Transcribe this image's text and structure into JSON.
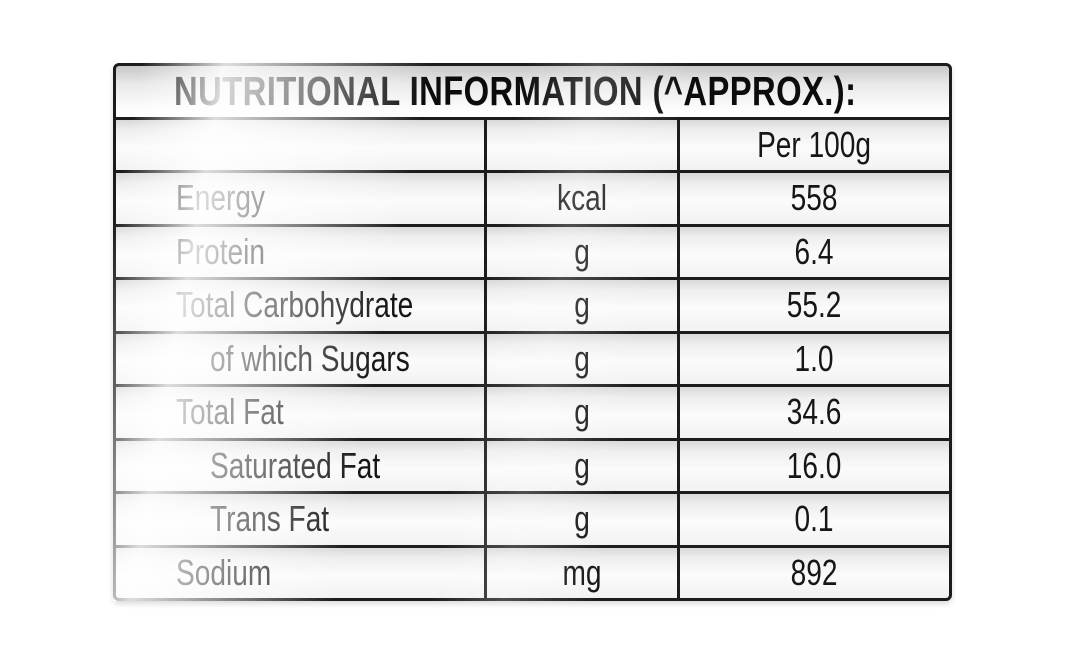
{
  "table": {
    "title": "NUTRITIONAL INFORMATION (^APPROX.):",
    "columns": {
      "amount_header": "Per 100g"
    },
    "rows": [
      {
        "nutrient": "Energy",
        "unit": "kcal",
        "value": "558",
        "indent": false
      },
      {
        "nutrient": "Protein",
        "unit": "g",
        "value": "6.4",
        "indent": false
      },
      {
        "nutrient": "Total Carbohydrate",
        "unit": "g",
        "value": "55.2",
        "indent": false
      },
      {
        "nutrient": "of which Sugars",
        "unit": "g",
        "value": "1.0",
        "indent": true
      },
      {
        "nutrient": "Total Fat",
        "unit": "g",
        "value": "34.6",
        "indent": false
      },
      {
        "nutrient": "Saturated Fat",
        "unit": "g",
        "value": "16.0",
        "indent": true
      },
      {
        "nutrient": "Trans Fat",
        "unit": "g",
        "value": "0.1",
        "indent": true
      },
      {
        "nutrient": "Sodium",
        "unit": "mg",
        "value": "892",
        "indent": false
      }
    ]
  },
  "colors": {
    "grid_line": "#1c1c1c",
    "text": "#161616",
    "background": "#ffffff",
    "cell_shade": "#d9d9d9"
  }
}
